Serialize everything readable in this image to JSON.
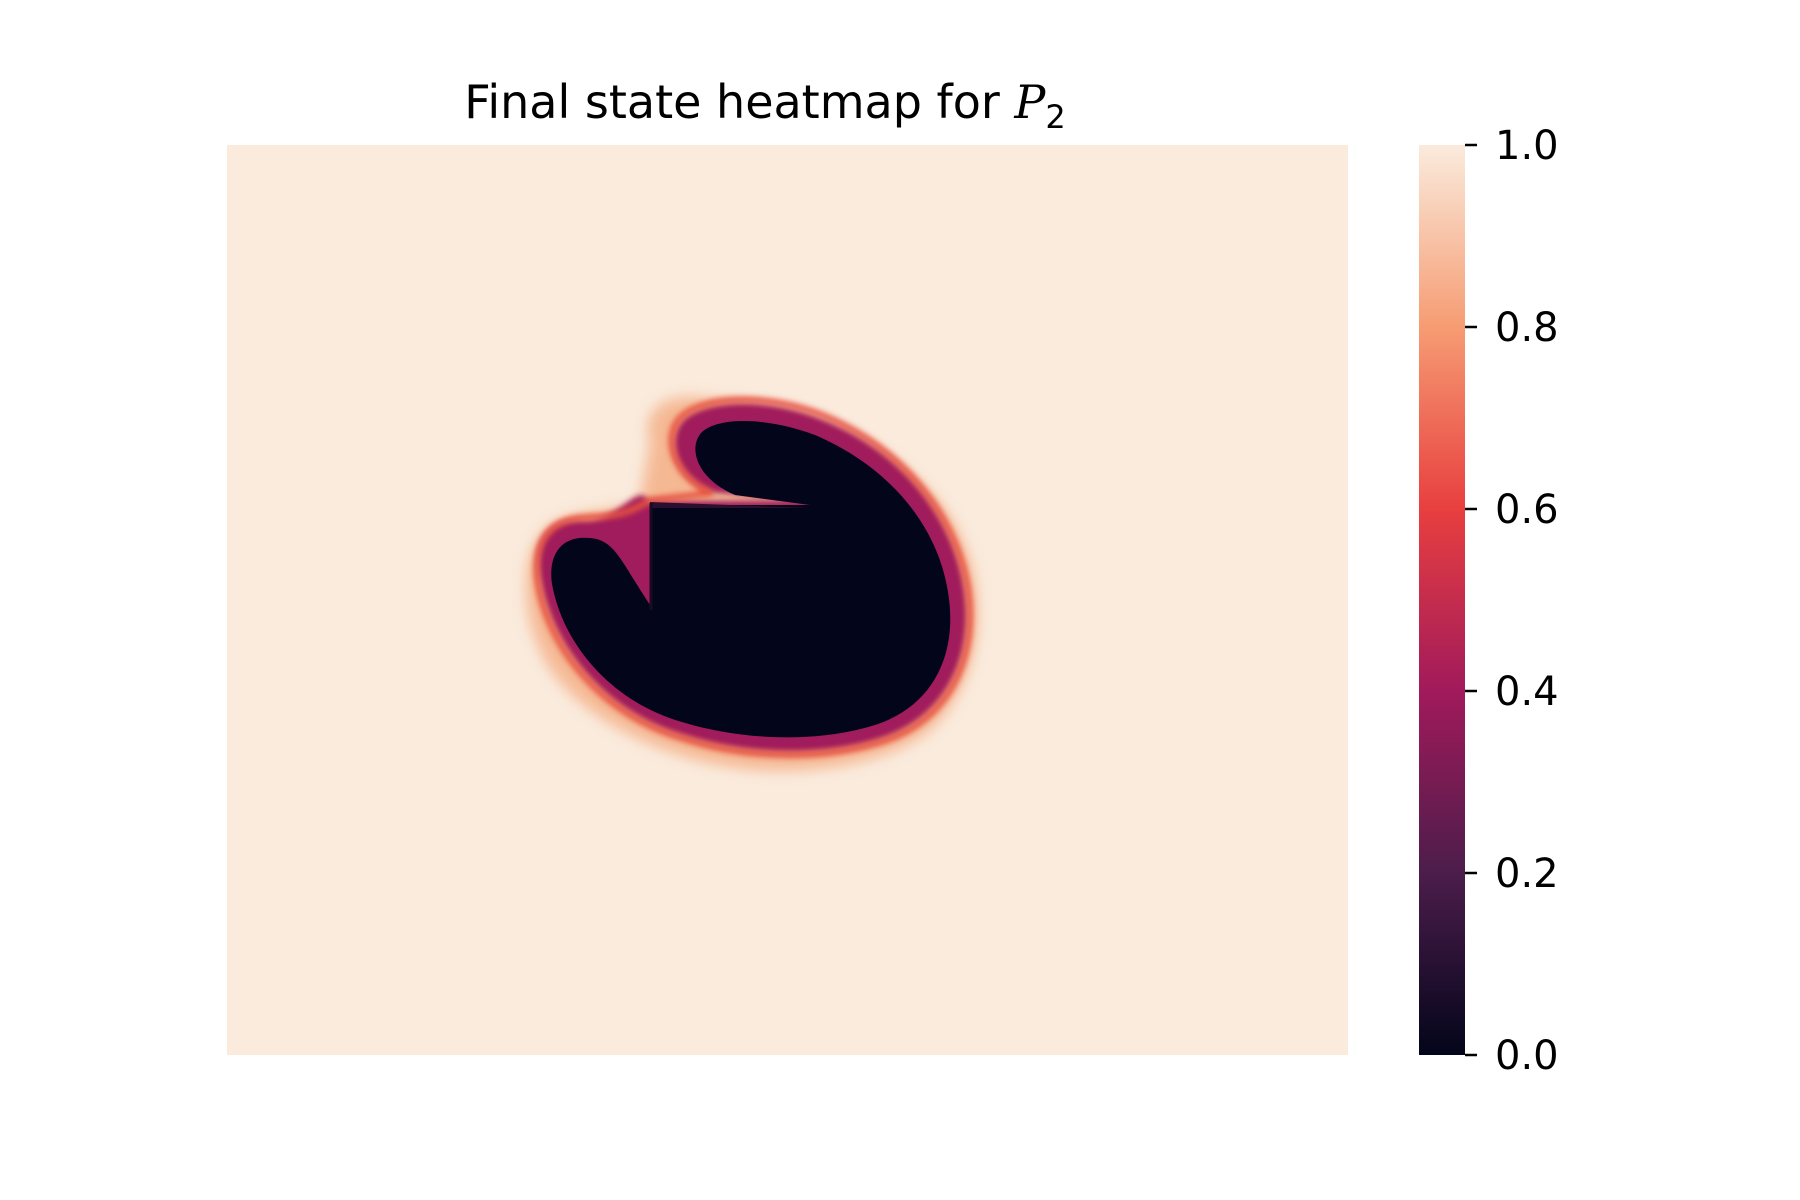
{
  "chart_data": {
    "type": "heatmap",
    "title": {
      "text": "Final state heatmap for ",
      "symbol": "P",
      "subscript": "2"
    },
    "xlabel": "",
    "ylabel": "",
    "axes_visible": false,
    "grid": false,
    "colormap": "rocket",
    "colorbar": {
      "range": [
        0.0,
        1.0
      ],
      "ticks": [
        0.0,
        0.2,
        0.4,
        0.6,
        0.8,
        1.0
      ],
      "tick_labels": [
        "0.0",
        "0.2",
        "0.4",
        "0.6",
        "0.8",
        "1.0"
      ],
      "colors": [
        "#03051a",
        "#4c1d4b",
        "#a11a5b",
        "#e83f3f",
        "#f69c73",
        "#faebdd"
      ]
    },
    "background_value": 0.97,
    "region": {
      "shape": "heart-like blob with square notch",
      "inside_value": 0.0,
      "edge_peak_value": 0.6,
      "outer_halo_value": 0.85
    }
  }
}
